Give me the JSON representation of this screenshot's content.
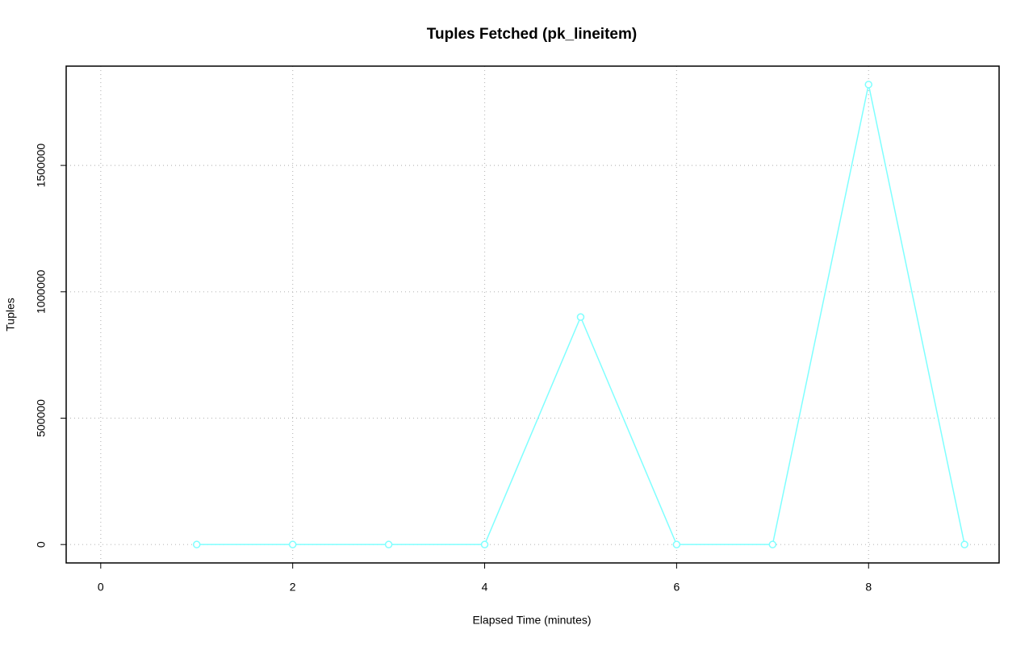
{
  "chart_data": {
    "type": "line",
    "title": "Tuples Fetched (pk_lineitem)",
    "x_label": "Elapsed Time (minutes)",
    "y_label": "Tuples",
    "x": [
      1,
      2,
      3,
      4,
      5,
      6,
      7,
      8,
      9
    ],
    "series": [
      {
        "name": "pk_lineitem",
        "color": "#7fffff",
        "values": [
          0,
          0,
          0,
          0,
          900000,
          0,
          0,
          1820000,
          0
        ]
      }
    ],
    "xlim": [
      -0.36,
      9.36
    ],
    "xticks": [
      0,
      2,
      4,
      6,
      8
    ],
    "ylim": [
      -72800,
      1892800
    ],
    "yticks": [
      0,
      500000,
      1000000,
      1500000
    ],
    "grid": true,
    "markers": true
  }
}
